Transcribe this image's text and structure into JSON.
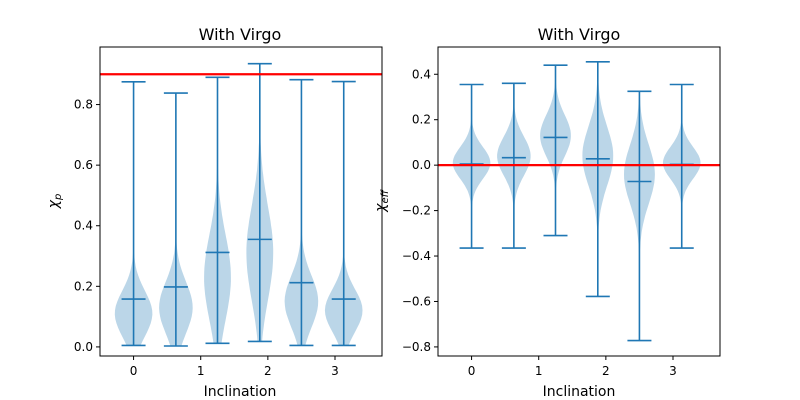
{
  "colors": {
    "violin_fill": "#1f77b4",
    "violin_fill_opacity": 0.3,
    "violin_line": "#1f77b4",
    "reference_line": "#ff0000",
    "axes": "#000000"
  },
  "chart_data": [
    {
      "type": "violin",
      "title": "With Virgo",
      "xlabel": "Inclination",
      "ylabel": "χp",
      "ylabel_main": "χ",
      "ylabel_sub": "p",
      "xlim": [
        -0.5,
        3.7
      ],
      "ylim": [
        -0.03,
        0.99
      ],
      "xticks": [
        0,
        1,
        2,
        3
      ],
      "xtick_labels": [
        "0",
        "1",
        "2",
        "3"
      ],
      "yticks": [
        0.0,
        0.2,
        0.4,
        0.6,
        0.8
      ],
      "ytick_labels": [
        "0.0",
        "0.2",
        "0.4",
        "0.6",
        "0.8"
      ],
      "reference_line_y": 0.9,
      "violins": [
        {
          "x": 0.0,
          "min": 0.005,
          "max": 0.875,
          "median": 0.158,
          "mode": 0.11,
          "spread": 0.075,
          "halfwidth": 0.28
        },
        {
          "x": 0.63,
          "min": 0.003,
          "max": 0.838,
          "median": 0.198,
          "mode": 0.13,
          "spread": 0.085,
          "halfwidth": 0.25
        },
        {
          "x": 1.25,
          "min": 0.012,
          "max": 0.89,
          "median": 0.312,
          "mode": 0.23,
          "spread": 0.14,
          "halfwidth": 0.2
        },
        {
          "x": 1.88,
          "min": 0.018,
          "max": 0.935,
          "median": 0.355,
          "mode": 0.31,
          "spread": 0.155,
          "halfwidth": 0.2
        },
        {
          "x": 2.5,
          "min": 0.005,
          "max": 0.882,
          "median": 0.212,
          "mode": 0.15,
          "spread": 0.085,
          "halfwidth": 0.25
        },
        {
          "x": 3.13,
          "min": 0.005,
          "max": 0.876,
          "median": 0.158,
          "mode": 0.12,
          "spread": 0.07,
          "halfwidth": 0.28
        }
      ]
    },
    {
      "type": "violin",
      "title": "With Virgo",
      "xlabel": "Inclination",
      "ylabel": "χeff",
      "ylabel_main": "χ",
      "ylabel_sub": "eff",
      "xlim": [
        -0.5,
        3.7
      ],
      "ylim": [
        -0.84,
        0.52
      ],
      "xticks": [
        0,
        1,
        2,
        3
      ],
      "xtick_labels": [
        "0",
        "1",
        "2",
        "3"
      ],
      "yticks": [
        -0.8,
        -0.6,
        -0.4,
        -0.2,
        0.0,
        0.2,
        0.4
      ],
      "ytick_labels": [
        "−0.8",
        "−0.6",
        "−0.4",
        "−0.2",
        "0.0",
        "0.2",
        "0.4"
      ],
      "reference_line_y": 0.0,
      "violins": [
        {
          "x": 0.0,
          "min": -0.365,
          "max": 0.355,
          "median": 0.005,
          "mode": 0.01,
          "spread": 0.07,
          "halfwidth": 0.28
        },
        {
          "x": 0.63,
          "min": -0.365,
          "max": 0.36,
          "median": 0.033,
          "mode": 0.04,
          "spread": 0.085,
          "halfwidth": 0.25
        },
        {
          "x": 1.25,
          "min": -0.31,
          "max": 0.44,
          "median": 0.122,
          "mode": 0.13,
          "spread": 0.09,
          "halfwidth": 0.23
        },
        {
          "x": 1.88,
          "min": -0.578,
          "max": 0.455,
          "median": 0.028,
          "mode": 0.04,
          "spread": 0.13,
          "halfwidth": 0.23
        },
        {
          "x": 2.5,
          "min": -0.772,
          "max": 0.325,
          "median": -0.072,
          "mode": -0.04,
          "spread": 0.13,
          "halfwidth": 0.23
        },
        {
          "x": 3.13,
          "min": -0.365,
          "max": 0.355,
          "median": 0.003,
          "mode": 0.01,
          "spread": 0.07,
          "halfwidth": 0.28
        }
      ]
    }
  ]
}
